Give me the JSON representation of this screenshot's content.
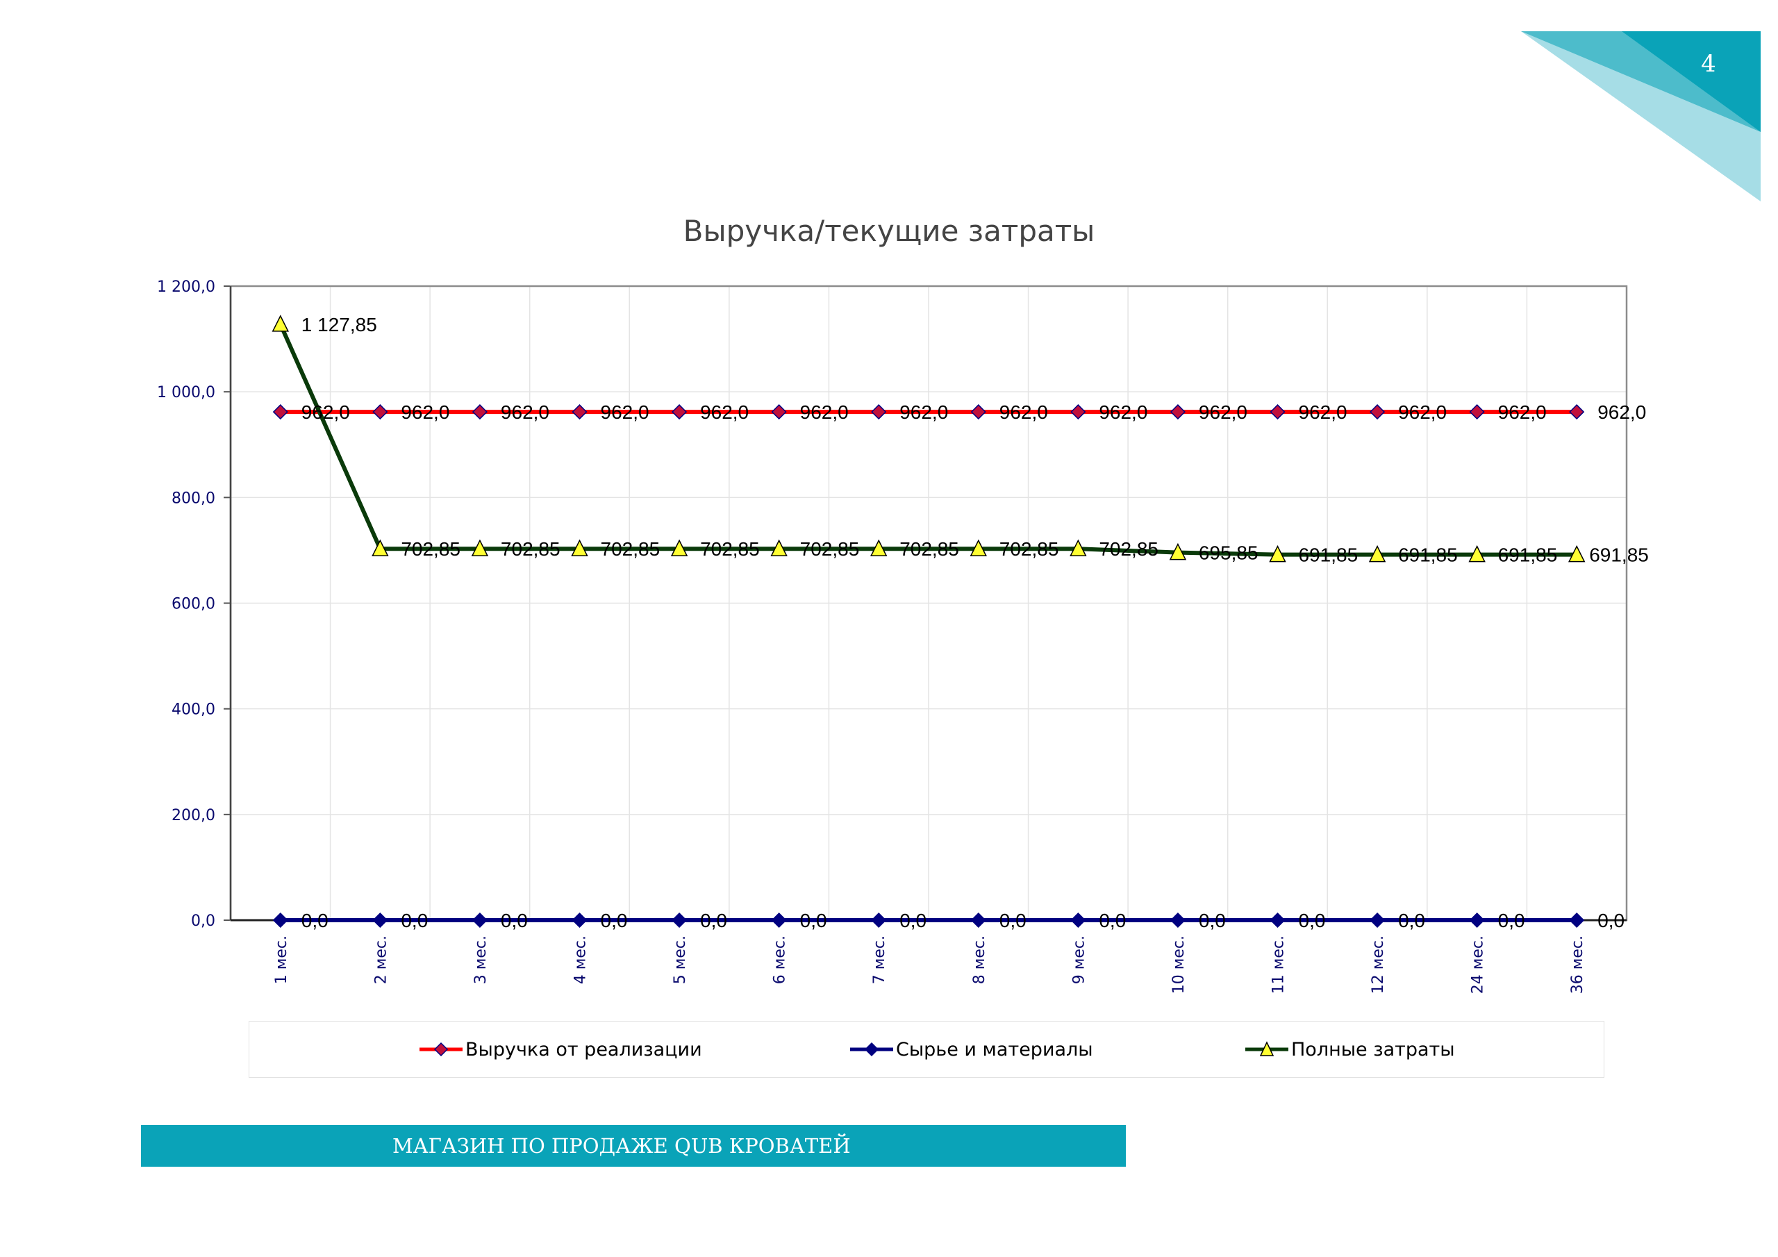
{
  "page": {
    "number": "4",
    "footer": "МАГАЗИН ПО ПРОДАЖЕ QUB КРОВАТЕЙ"
  },
  "colors": {
    "accent": "#0aa3b8",
    "accent_light": "#7fd3df",
    "grid": "#e4e4e4",
    "axis": "#8c8c8c"
  },
  "chart_data": {
    "type": "line",
    "title": "Выручка/текущие затраты",
    "xlabel": "",
    "ylabel": "",
    "ylim": [
      0,
      1200
    ],
    "yticks": [
      "0,0",
      "200,0",
      "400,0",
      "600,0",
      "800,0",
      "1 000,0",
      "1 200,0"
    ],
    "grid": true,
    "legend_position": "bottom",
    "categories": [
      "1 мес.",
      "2 мес.",
      "3 мес.",
      "4 мес.",
      "5 мес.",
      "6 мес.",
      "7 мес.",
      "8 мес.",
      "9 мес.",
      "10 мес.",
      "11 мес.",
      "12 мес.",
      "24 мес.",
      "36 мес."
    ],
    "series": [
      {
        "name": "Выручка от реализации",
        "color": "#ff0000",
        "marker": "diamond",
        "marker_color": "#c0103c",
        "values": [
          962.0,
          962.0,
          962.0,
          962.0,
          962.0,
          962.0,
          962.0,
          962.0,
          962.0,
          962.0,
          962.0,
          962.0,
          962.0,
          962.0
        ],
        "labels": [
          "962,0",
          "962,0",
          "962,0",
          "962,0",
          "962,0",
          "962,0",
          "962,0",
          "962,0",
          "962,0",
          "962,0",
          "962,0",
          "962,0",
          "962,0",
          "962,0"
        ]
      },
      {
        "name": "Сырье и материалы",
        "color": "#000080",
        "marker": "diamond",
        "marker_color": "#000080",
        "values": [
          0,
          0,
          0,
          0,
          0,
          0,
          0,
          0,
          0,
          0,
          0,
          0,
          0,
          0
        ],
        "labels": [
          "0,0",
          "0,0",
          "0,0",
          "0,0",
          "0,0",
          "0,0",
          "0,0",
          "0,0",
          "0,0",
          "0,0",
          "0,0",
          "0,0",
          "0,0",
          "0,0"
        ]
      },
      {
        "name": "Полные затраты",
        "color": "#0a3a0a",
        "marker": "triangle",
        "marker_color": "#ffff33",
        "values": [
          1127.85,
          702.85,
          702.85,
          702.85,
          702.85,
          702.85,
          702.85,
          702.85,
          702.85,
          695.85,
          691.85,
          691.85,
          691.85,
          691.85
        ],
        "labels": [
          "1 127,85",
          "702,85",
          "702,85",
          "702,85",
          "702,85",
          "702,85",
          "702,85",
          "702,85",
          "702,85",
          "695,85",
          "691,85",
          "691,85",
          "691,85",
          "691,85"
        ]
      }
    ]
  }
}
